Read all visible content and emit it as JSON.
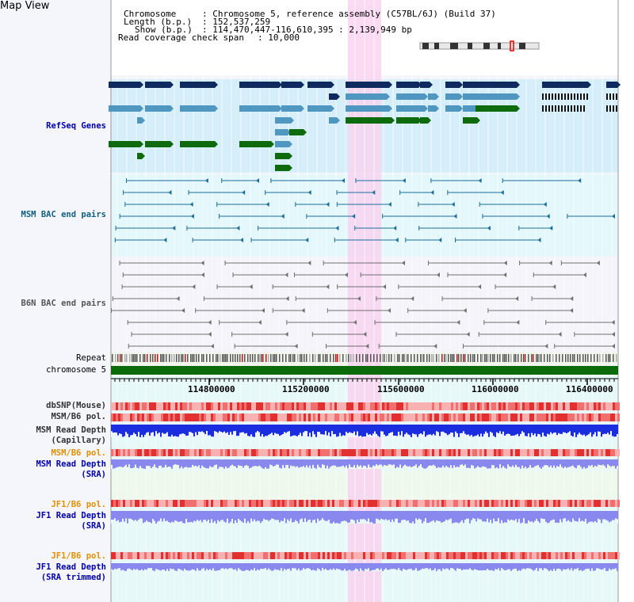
{
  "title": "Map View",
  "header": {
    "chromosome_label": "Chromosome",
    "chromosome_value": ": Chromosome 5, reference assembly (C57BL/6J) (Build 37)",
    "length_label": "Length (b.p.)",
    "length_value": ": 152,537,259",
    "show_label": "Show (b.p.)",
    "show_value": ": 114,470,447-116,610,395 : 2,139,949 bp",
    "coverage_label": "Read coverage check span",
    "coverage_value": ": 10,000"
  },
  "tracks": {
    "refseq": "RefSeq Genes",
    "msm_bac": "MSM BAC end pairs",
    "b6n_bac": "B6N BAC end pairs",
    "repeat": "Repeat",
    "chromosome": "chromosome 5",
    "dbsnp": "dbSNP(Mouse)",
    "msm_pol1": "MSM/B6 pol.",
    "msm_depth_cap_1": "MSM Read Depth",
    "msm_depth_cap_2": "(Capillary)",
    "msm_pol2": "MSM/B6 pol.",
    "msm_depth_sra_1": "MSM Read Depth",
    "msm_depth_sra_2": "(SRA)",
    "jf1_pol1": "JF1/B6 pol.",
    "jf1_depth_1": "JF1 Read Depth",
    "jf1_depth_2": "(SRA)",
    "jf1_pol2": "JF1/B6 pol.",
    "jf1_trim_1": "JF1 Read Depth",
    "jf1_trim_2": "(SRA trimmed)"
  },
  "axis_ticks": [
    "114800000",
    "115200000",
    "115600000",
    "116000000",
    "116400000"
  ],
  "colors": {
    "refseq_dark": "#0e2a5e",
    "refseq_light": "#4f96c0",
    "refseq_green": "#0d6b0d",
    "msm_bac": "#1a6e99",
    "b6n_bac": "#707070",
    "highlight": "#f8d4f0",
    "chromosome_bar": "#0b6b0b",
    "depth_blue": "#1a2ee0",
    "depth_light": "#8888ee",
    "pol_red": "#e83030",
    "label_blue": "#0000aa",
    "label_teal": "#106080",
    "label_orange": "#e09000"
  }
}
